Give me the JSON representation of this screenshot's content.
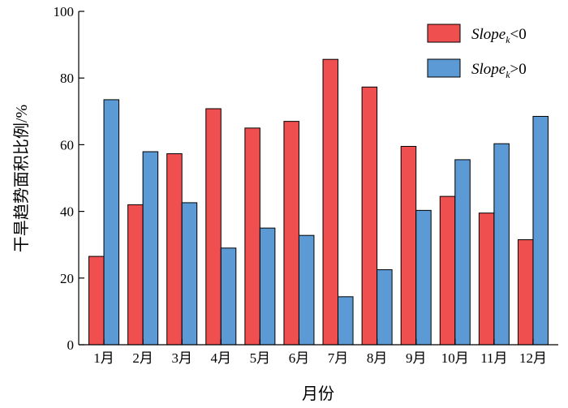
{
  "chart_data": {
    "type": "bar",
    "categories": [
      "1月",
      "2月",
      "3月",
      "4月",
      "5月",
      "6月",
      "7月",
      "8月",
      "9月",
      "10月",
      "11月",
      "12月"
    ],
    "series": [
      {
        "name_main": "Slope",
        "name_sub": "k",
        "name_rel": "<0",
        "color": "#ef4f4f",
        "values": [
          26.5,
          42,
          57.3,
          70.8,
          65,
          67,
          85.6,
          77.3,
          59.5,
          44.5,
          39.5,
          31.5
        ]
      },
      {
        "name_main": "Slope",
        "name_sub": "k",
        "name_rel": ">0",
        "color": "#5b9ad5",
        "values": [
          73.5,
          57.9,
          42.6,
          29,
          35,
          32.8,
          14.4,
          22.5,
          40.3,
          55.5,
          60.3,
          68.5
        ]
      }
    ],
    "xlabel": "月份",
    "ylabel": "干旱趋势面积比例/%",
    "ylim": [
      0,
      100
    ],
    "yticks": [
      0,
      20,
      40,
      60,
      80,
      100
    ],
    "grid": false,
    "legend_position": "top-right"
  }
}
